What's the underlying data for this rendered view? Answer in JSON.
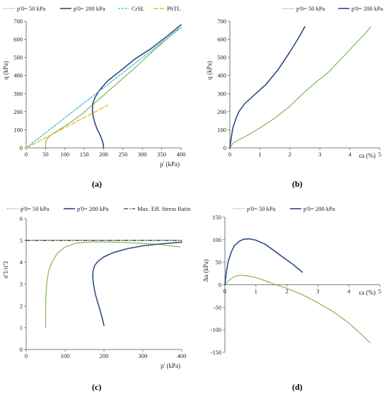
{
  "chart_data": [
    {
      "id": "a",
      "panel_label": "(a)",
      "type": "line",
      "xlabel": "p' (kPa)",
      "ylabel": "q (kPa)",
      "xlim": [
        0,
        400
      ],
      "ylim": [
        0,
        700
      ],
      "xticks": [
        0,
        50,
        100,
        150,
        200,
        250,
        300,
        350,
        400
      ],
      "yticks": [
        0,
        100,
        200,
        300,
        400,
        500,
        600,
        700
      ],
      "legend_position": "top",
      "series": [
        {
          "name": "p'0= 50 kPa",
          "style": "dotted",
          "color": "#6aab3c",
          "x": [
            50,
            50,
            51,
            56,
            66,
            85,
            110,
            140,
            170,
            205,
            245,
            285,
            325,
            362,
            395
          ],
          "y": [
            0,
            20,
            38,
            55,
            75,
            100,
            135,
            180,
            235,
            300,
            375,
            450,
            530,
            600,
            660
          ]
        },
        {
          "name": "p'0= 200 kPa",
          "style": "solid",
          "color": "#2e4a84",
          "x": [
            200,
            199,
            196,
            190,
            183,
            177,
            173,
            171,
            172,
            178,
            190,
            210,
            240,
            280,
            320,
            360,
            400
          ],
          "y": [
            0,
            20,
            45,
            75,
            105,
            140,
            175,
            210,
            245,
            280,
            320,
            370,
            420,
            490,
            545,
            610,
            680
          ]
        },
        {
          "name": "CrSL",
          "style": "dashed",
          "color": "#3ab5d8",
          "x": [
            0,
            400
          ],
          "y": [
            0,
            665
          ]
        },
        {
          "name": "PhTL",
          "style": "longdash",
          "color": "#f0b42a",
          "x": [
            0,
            210
          ],
          "y": [
            0,
            235
          ]
        }
      ]
    },
    {
      "id": "b",
      "panel_label": "(b)",
      "type": "line",
      "xlabel": "εa (%)",
      "ylabel": "q (kPa)",
      "xlim": [
        0,
        5
      ],
      "ylim": [
        0,
        700
      ],
      "xticks": [
        0,
        1,
        2,
        3,
        4,
        5
      ],
      "yticks": [
        0,
        100,
        200,
        300,
        400,
        500,
        600,
        700
      ],
      "legend_position": "top",
      "series": [
        {
          "name": "p'0= 50 kPa",
          "style": "dotted",
          "color": "#6aab3c",
          "x": [
            0,
            0.1,
            0.3,
            0.6,
            1.0,
            1.5,
            2.0,
            2.5,
            3.0,
            3.3,
            3.7,
            4.1,
            4.5,
            4.7
          ],
          "y": [
            0,
            25,
            45,
            70,
            110,
            165,
            230,
            310,
            380,
            420,
            490,
            560,
            630,
            670
          ]
        },
        {
          "name": "p'0= 200 kPa",
          "style": "solid",
          "color": "#2e4a84",
          "x": [
            0,
            0.05,
            0.1,
            0.2,
            0.3,
            0.5,
            0.8,
            1.2,
            1.6,
            2.0,
            2.3,
            2.5
          ],
          "y": [
            0,
            60,
            110,
            160,
            200,
            245,
            290,
            350,
            430,
            530,
            610,
            670
          ]
        }
      ]
    },
    {
      "id": "c",
      "panel_label": "(c)",
      "type": "line",
      "xlabel": "p' (kPa)",
      "ylabel": "σ'1/σ'3",
      "xlim": [
        0,
        400
      ],
      "ylim": [
        0,
        6
      ],
      "xticks": [
        0,
        100,
        200,
        300,
        400
      ],
      "yticks": [
        0,
        1,
        2,
        3,
        4,
        5,
        6
      ],
      "legend_position": "top",
      "series": [
        {
          "name": "p'0= 50 kPa",
          "style": "dotted",
          "color": "#6aab3c",
          "x": [
            50,
            50,
            51,
            53,
            58,
            66,
            80,
            100,
            130,
            170,
            220,
            280,
            340,
            395
          ],
          "y": [
            1.0,
            1.8,
            2.5,
            3.1,
            3.6,
            4.0,
            4.4,
            4.7,
            4.88,
            4.93,
            4.92,
            4.88,
            4.82,
            4.7
          ]
        },
        {
          "name": "p'0= 200 kPa",
          "style": "solid",
          "color": "#2e4a84",
          "x": [
            200,
            196,
            190,
            183,
            177,
            173,
            171,
            172,
            176,
            185,
            200,
            225,
            260,
            300,
            350,
            400
          ],
          "y": [
            1.1,
            1.4,
            1.8,
            2.2,
            2.6,
            3.0,
            3.3,
            3.6,
            3.85,
            4.05,
            4.25,
            4.45,
            4.62,
            4.75,
            4.85,
            4.92
          ]
        },
        {
          "name": "Max. Eff. Stress Ratio",
          "style": "dashdot",
          "color": "#111111",
          "x": [
            0,
            400
          ],
          "y": [
            5.0,
            5.0
          ]
        }
      ]
    },
    {
      "id": "d",
      "panel_label": "(d)",
      "type": "line",
      "xlabel": "εa (%)",
      "ylabel": "Δu (kPa)",
      "xlim": [
        0,
        5
      ],
      "ylim": [
        -150,
        150
      ],
      "xticks": [
        0,
        1,
        2,
        3,
        4,
        5
      ],
      "yticks": [
        -150,
        -100,
        -50,
        0,
        50,
        100,
        150
      ],
      "legend_position": "top",
      "series": [
        {
          "name": "p'0= 50 kPa",
          "style": "dotted",
          "color": "#6aab3c",
          "x": [
            0,
            0.1,
            0.2,
            0.35,
            0.5,
            0.7,
            1.0,
            1.3,
            1.6,
            2.0,
            2.5,
            3.0,
            3.5,
            4.0,
            4.4,
            4.7
          ],
          "y": [
            0,
            8,
            14,
            19,
            21,
            20,
            16,
            9,
            1,
            -8,
            -22,
            -40,
            -60,
            -85,
            -110,
            -130
          ]
        },
        {
          "name": "p'0= 200 kPa",
          "style": "solid",
          "color": "#2e4a84",
          "x": [
            0,
            0.05,
            0.1,
            0.2,
            0.3,
            0.45,
            0.6,
            0.8,
            1.0,
            1.3,
            1.6,
            1.9,
            2.2,
            2.5
          ],
          "y": [
            0,
            30,
            50,
            72,
            86,
            96,
            101,
            102,
            99,
            90,
            75,
            60,
            45,
            28
          ]
        }
      ]
    }
  ]
}
